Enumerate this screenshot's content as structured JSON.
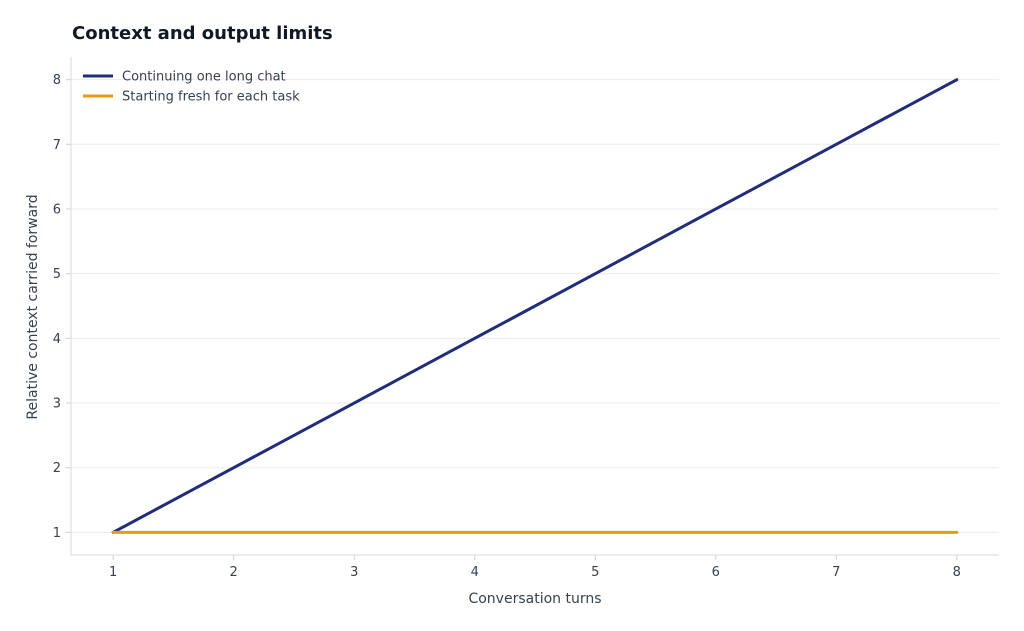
{
  "chart_data": {
    "type": "line",
    "title": "Context and output limits",
    "xlabel": "Conversation turns",
    "ylabel": "Relative context carried forward",
    "x": [
      1,
      2,
      3,
      4,
      5,
      6,
      7,
      8
    ],
    "xlim": [
      0.65,
      8.35
    ],
    "ylim": [
      0.65,
      8.35
    ],
    "xticks": [
      "1",
      "2",
      "3",
      "4",
      "5",
      "6",
      "7",
      "8"
    ],
    "yticks": [
      "1",
      "2",
      "3",
      "4",
      "5",
      "6",
      "7",
      "8"
    ],
    "grid": "horizontal",
    "legend_position": "top-left",
    "series": [
      {
        "name": "Continuing one long chat",
        "color": "#1f2d7a",
        "values": [
          1,
          2,
          3,
          4,
          5,
          6,
          7,
          8
        ]
      },
      {
        "name": "Starting fresh for each task",
        "color": "#e89a12",
        "values": [
          1,
          1,
          1,
          1,
          1,
          1,
          1,
          1
        ]
      }
    ]
  }
}
